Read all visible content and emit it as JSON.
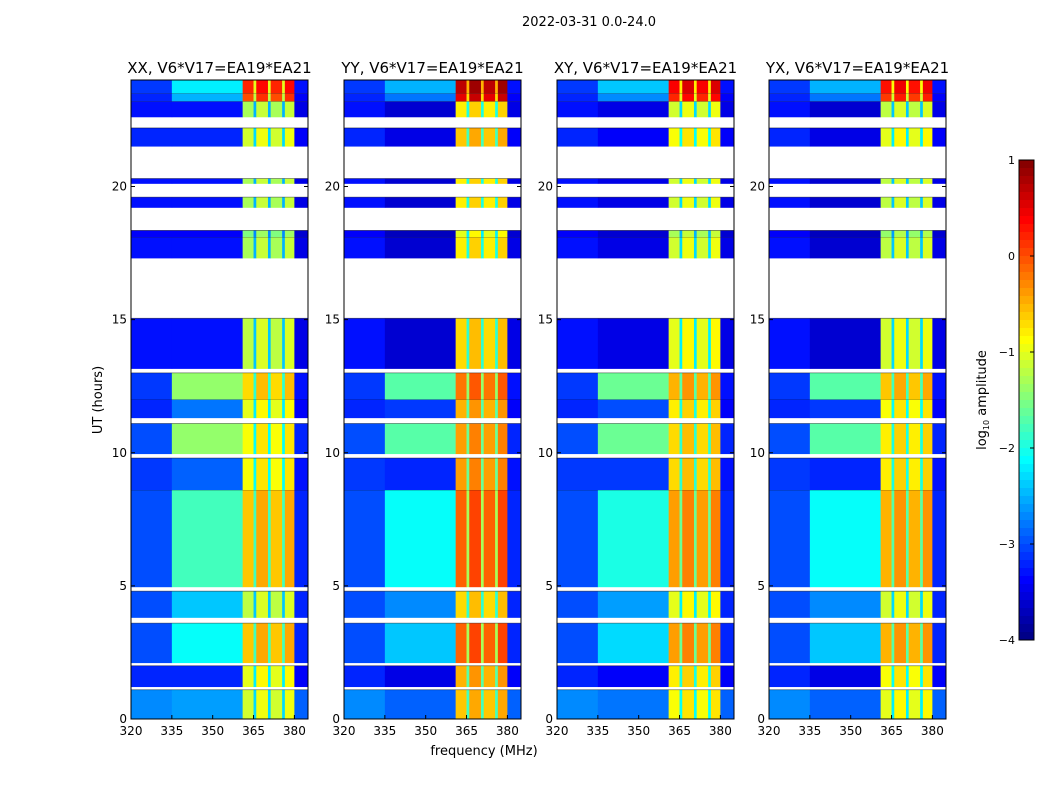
{
  "chart_data": {
    "type": "heatmap",
    "suptitle": "2022-03-31 0.0-24.0",
    "xlabel": "frequency (MHz)",
    "ylabel": "UT (hours)",
    "xlim": [
      320,
      385
    ],
    "ylim": [
      0,
      24
    ],
    "xticks": [
      "320",
      "335",
      "350",
      "365",
      "380"
    ],
    "xtick_values": [
      320,
      335,
      350,
      365,
      380
    ],
    "yticks": [
      "0",
      "5",
      "10",
      "15",
      "20"
    ],
    "ytick_values": [
      0,
      5,
      10,
      15,
      20
    ],
    "colorbar": {
      "label_main": "log",
      "label_sub": "10",
      "label_rest": " amplitude",
      "range": [
        -4,
        1
      ],
      "ticks": [
        "1",
        "0",
        "−1",
        "−2",
        "−3",
        "−4"
      ],
      "tick_values": [
        1,
        0,
        -1,
        -2,
        -3,
        -4
      ],
      "colormap": "jet"
    },
    "freq_bands": [
      {
        "range": [
          320,
          335
        ],
        "kind": "low"
      },
      {
        "range": [
          335,
          361
        ],
        "kind": "mid"
      },
      {
        "range": [
          361,
          365
        ],
        "kind": "bright"
      },
      {
        "range": [
          365,
          366
        ],
        "kind": "notch"
      },
      {
        "range": [
          366,
          370.3
        ],
        "kind": "bright"
      },
      {
        "range": [
          370.3,
          371.3
        ],
        "kind": "notch"
      },
      {
        "range": [
          371.3,
          375.5
        ],
        "kind": "bright"
      },
      {
        "range": [
          375.5,
          376.5
        ],
        "kind": "notch"
      },
      {
        "range": [
          376.5,
          380
        ],
        "kind": "bright"
      },
      {
        "range": [
          380,
          385
        ],
        "kind": "low"
      }
    ],
    "time_segments": [
      {
        "t": [
          0,
          1.1
        ],
        "flagged": false,
        "low": -2.7,
        "mid": -2.6,
        "bright": -1.1
      },
      {
        "t": [
          1.1,
          1.2
        ],
        "flagged": true
      },
      {
        "t": [
          1.2,
          2.0
        ],
        "flagged": false,
        "low": -3.2,
        "mid": -3.2,
        "bright": -1.0
      },
      {
        "t": [
          2.0,
          2.1
        ],
        "flagged": true
      },
      {
        "t": [
          2.1,
          3.6
        ],
        "flagged": false,
        "low": -3.0,
        "mid": -2.1,
        "bright": -0.6
      },
      {
        "t": [
          3.6,
          3.8
        ],
        "flagged": true
      },
      {
        "t": [
          3.8,
          4.8
        ],
        "flagged": false,
        "low": -3.0,
        "mid": -2.4,
        "bright": -1.2
      },
      {
        "t": [
          4.8,
          4.95
        ],
        "flagged": true
      },
      {
        "t": [
          4.95,
          8.6
        ],
        "flagged": false,
        "low": -3.0,
        "mid": -1.8,
        "bright": -0.6
      },
      {
        "t": [
          8.6,
          9.8
        ],
        "flagged": false,
        "low": -3.1,
        "mid": -2.9,
        "bright": -0.9
      },
      {
        "t": [
          9.8,
          9.95
        ],
        "flagged": true
      },
      {
        "t": [
          9.95,
          11.1
        ],
        "flagged": false,
        "low": -3.0,
        "mid": -1.4,
        "bright": -0.9
      },
      {
        "t": [
          11.1,
          11.3
        ],
        "flagged": true
      },
      {
        "t": [
          11.3,
          12.0
        ],
        "flagged": false,
        "low": -3.2,
        "mid": -2.8,
        "bright": -1.0
      },
      {
        "t": [
          12.0,
          13.0
        ],
        "flagged": false,
        "low": -3.1,
        "mid": -1.4,
        "bright": -0.7
      },
      {
        "t": [
          13.0,
          13.15
        ],
        "flagged": true
      },
      {
        "t": [
          13.15,
          15.05
        ],
        "flagged": false,
        "low": -3.3,
        "mid": -3.3,
        "bright": -1.2
      },
      {
        "t": [
          15.05,
          17.3
        ],
        "flagged": true
      },
      {
        "t": [
          17.3,
          18.1
        ],
        "flagged": false,
        "low": -3.3,
        "mid": -3.3,
        "bright": -1.3
      },
      {
        "t": [
          18.1,
          18.35
        ],
        "flagged": false,
        "low": -3.4,
        "mid": -3.4,
        "bright": -1.5
      },
      {
        "t": [
          18.35,
          19.2
        ],
        "flagged": true
      },
      {
        "t": [
          19.2,
          19.6
        ],
        "flagged": false,
        "low": -3.3,
        "mid": -3.3,
        "bright": -1.3
      },
      {
        "t": [
          19.6,
          20.1
        ],
        "flagged": true
      },
      {
        "t": [
          20.1,
          20.3
        ],
        "flagged": false,
        "low": -3.3,
        "mid": -3.3,
        "bright": -1.3
      },
      {
        "t": [
          20.3,
          21.5
        ],
        "flagged": true
      },
      {
        "t": [
          21.5,
          22.2
        ],
        "flagged": false,
        "low": -3.2,
        "mid": -3.2,
        "bright": -1.1
      },
      {
        "t": [
          22.2,
          22.6
        ],
        "flagged": true
      },
      {
        "t": [
          22.6,
          23.2
        ],
        "flagged": false,
        "low": -3.3,
        "mid": -3.3,
        "bright": -1.3
      },
      {
        "t": [
          23.2,
          23.5
        ],
        "flagged": false,
        "low": -3.2,
        "mid": -2.5,
        "bright": 0.0
      },
      {
        "t": [
          23.5,
          24.0
        ],
        "flagged": false,
        "low": -3.1,
        "mid": -2.2,
        "bright": 0.2
      }
    ],
    "panels": [
      {
        "title": "XX, V6*V17=EA19*EA21",
        "mid_offset": 0.0,
        "bright_offset": 0.0
      },
      {
        "title": "YY, V6*V17=EA19*EA21",
        "mid_offset": -0.3,
        "bright_offset": 0.5
      },
      {
        "title": "XY, V6*V17=EA19*EA21",
        "mid_offset": -0.2,
        "bright_offset": 0.2
      },
      {
        "title": "YX, V6*V17=EA19*EA21",
        "mid_offset": -0.3,
        "bright_offset": 0.1
      }
    ]
  }
}
